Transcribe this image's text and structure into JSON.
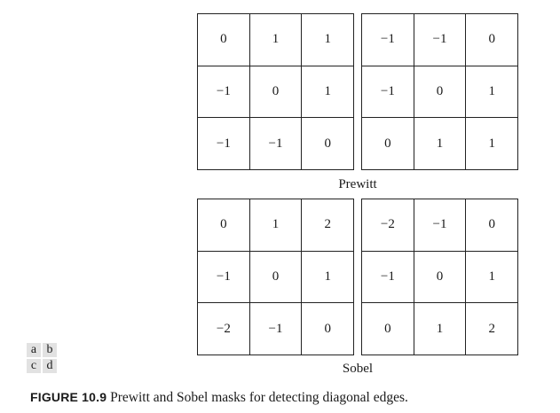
{
  "masks": {
    "prewitt_a": [
      [
        "0",
        "1",
        "1"
      ],
      [
        "−1",
        "0",
        "1"
      ],
      [
        "−1",
        "−1",
        "0"
      ]
    ],
    "prewitt_b": [
      [
        "−1",
        "−1",
        "0"
      ],
      [
        "−1",
        "0",
        "1"
      ],
      [
        "0",
        "1",
        "1"
      ]
    ],
    "sobel_c": [
      [
        "0",
        "1",
        "2"
      ],
      [
        "−1",
        "0",
        "1"
      ],
      [
        "−2",
        "−1",
        "0"
      ]
    ],
    "sobel_d": [
      [
        "−2",
        "−1",
        "0"
      ],
      [
        "−1",
        "0",
        "1"
      ],
      [
        "0",
        "1",
        "2"
      ]
    ]
  },
  "labels": {
    "prewitt": "Prewitt",
    "sobel": "Sobel"
  },
  "panel_letters": [
    "a",
    "b",
    "c",
    "d"
  ],
  "caption": {
    "figure_label": "FIGURE 10.9",
    "text": "Prewitt and Sobel masks for detecting diagonal edges."
  }
}
